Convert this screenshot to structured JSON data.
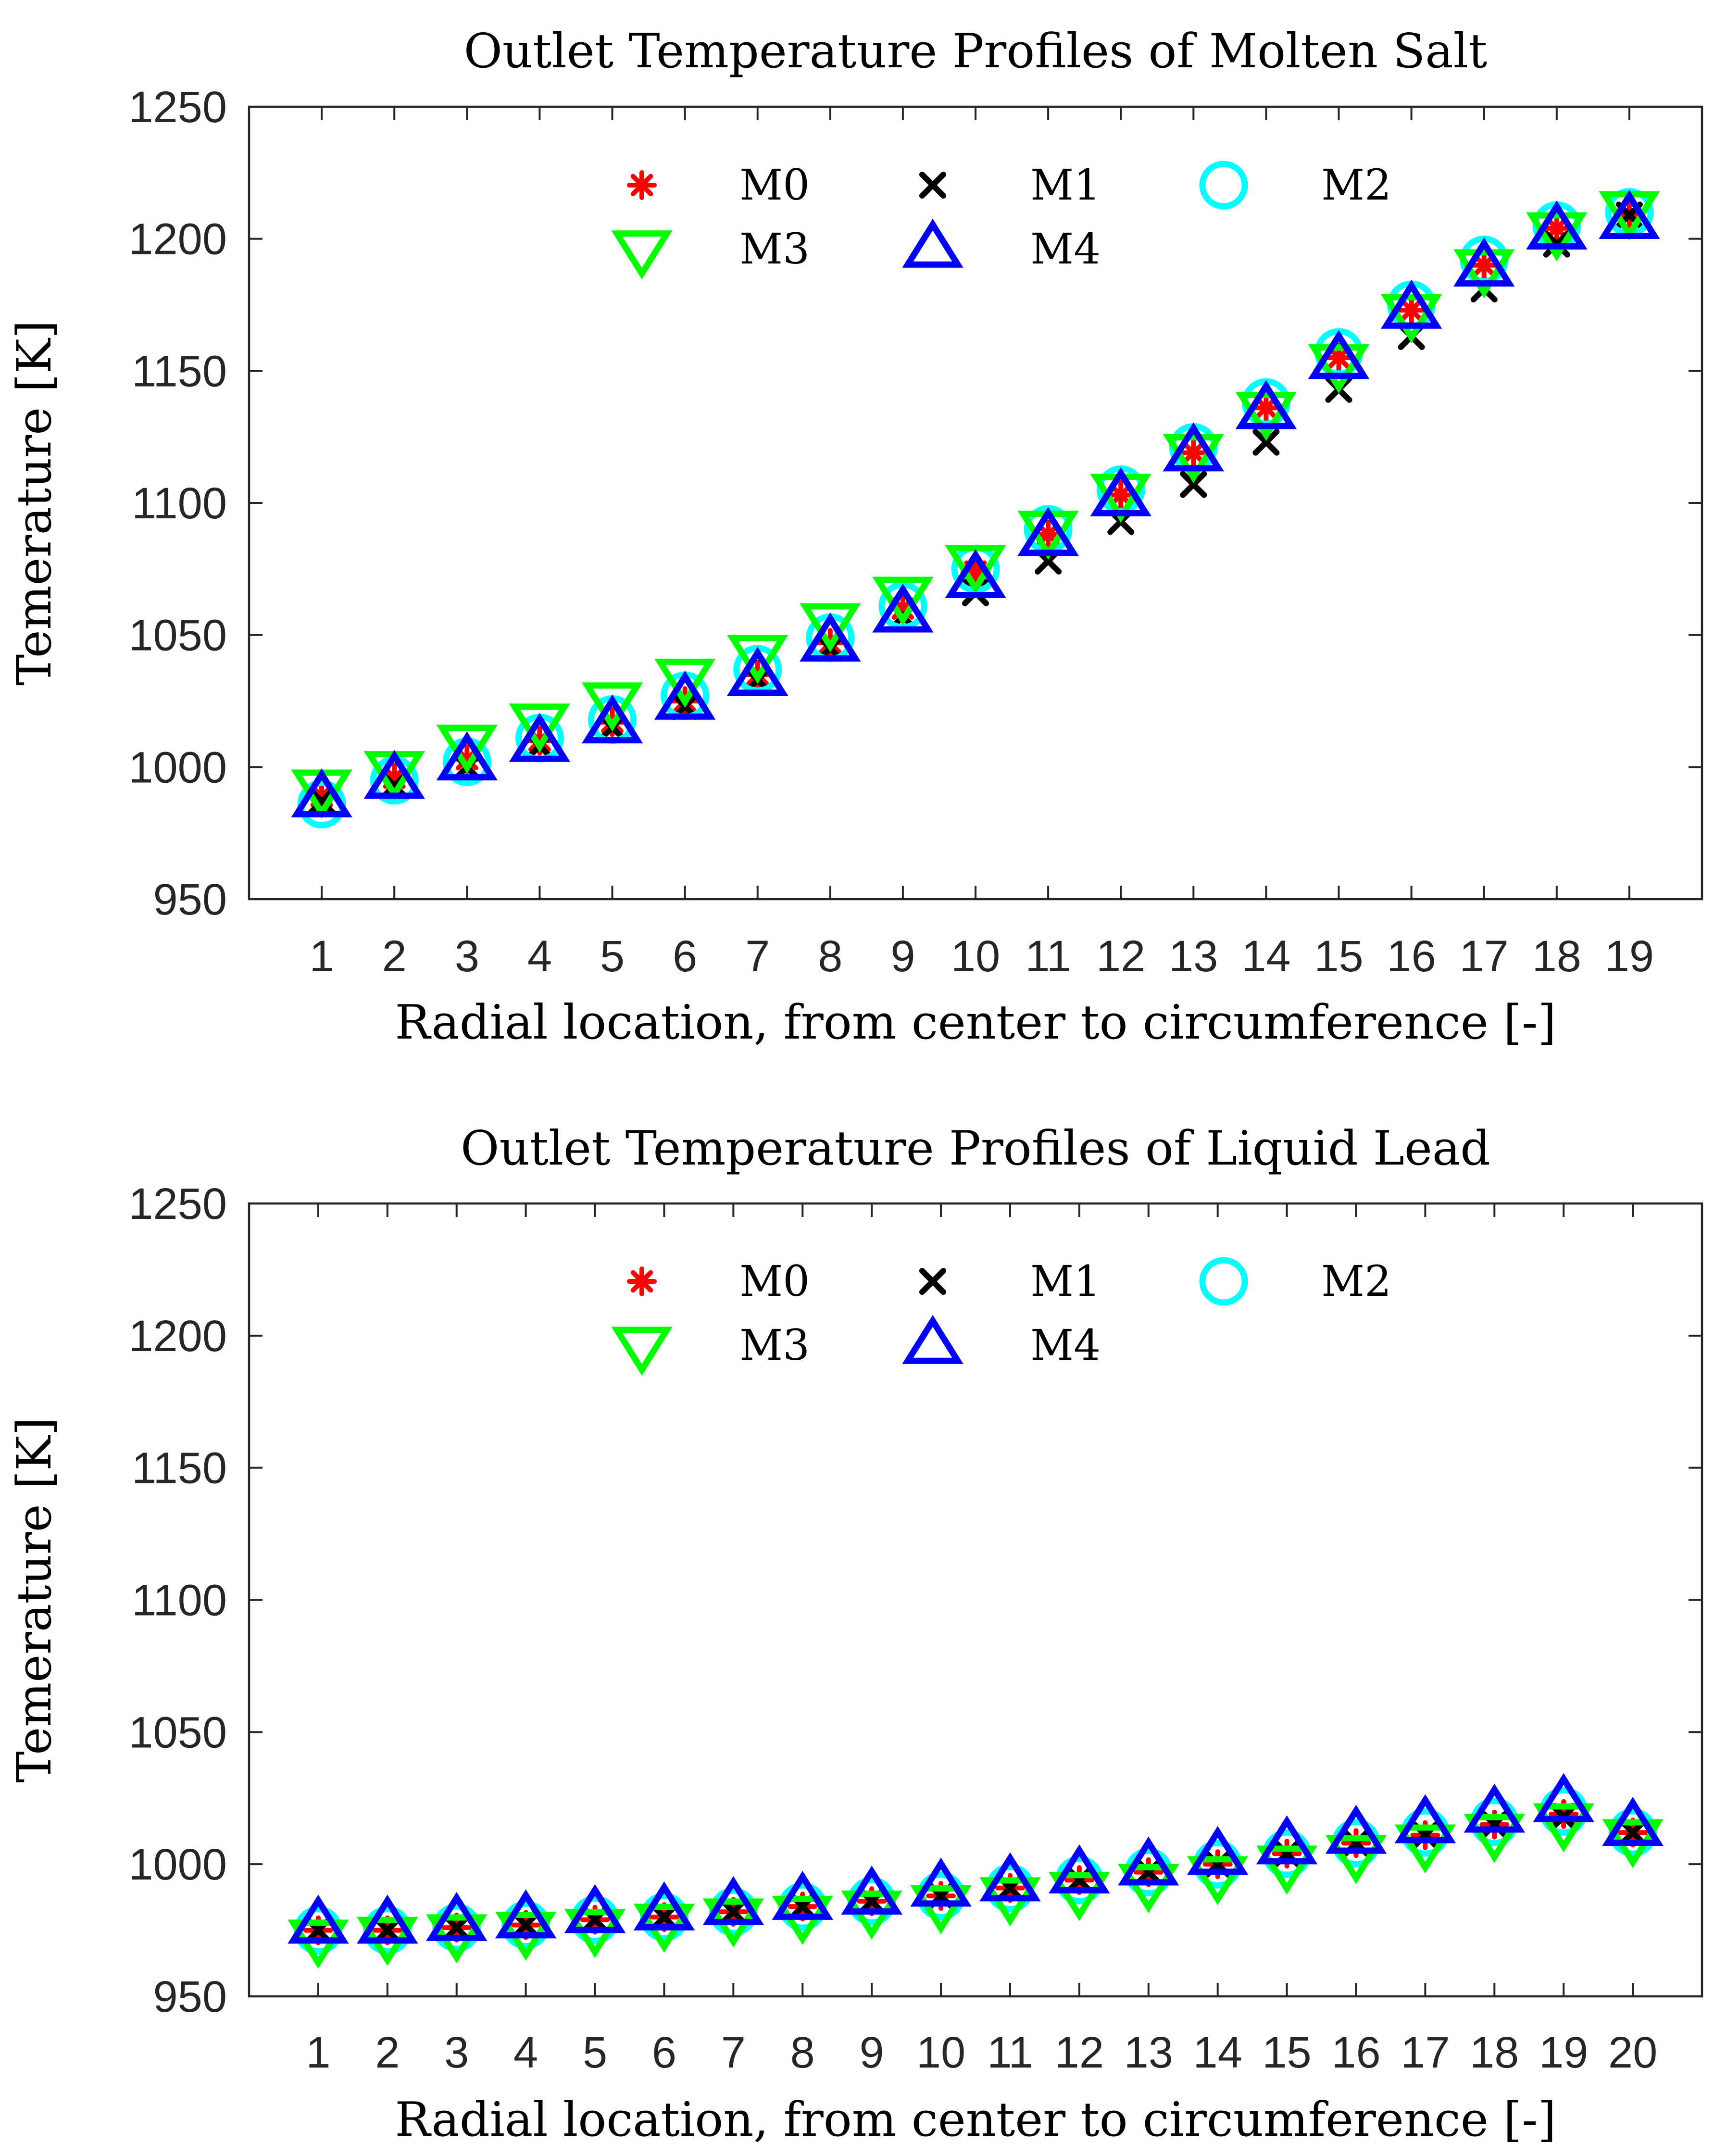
{
  "chart_data": [
    {
      "type": "scatter",
      "title": "Outlet Temperature Profiles of Molten Salt",
      "xlabel": "Radial location, from center to circumference [-]",
      "ylabel": "Temerature [K]",
      "ylim": [
        950,
        1250
      ],
      "yticks": [
        950,
        1000,
        1050,
        1100,
        1150,
        1200,
        1250
      ],
      "categories": [
        "1",
        "2",
        "3",
        "4",
        "5",
        "6",
        "7",
        "8",
        "9",
        "10",
        "11",
        "12",
        "13",
        "14",
        "15",
        "16",
        "17",
        "18",
        "19"
      ],
      "legend_position": "top-center",
      "series": [
        {
          "name": "M0",
          "marker": "asterisk",
          "color": "#ff0000",
          "values": [
            989,
            996,
            1003,
            1010,
            1017,
            1025,
            1035,
            1047,
            1060,
            1074,
            1088,
            1103,
            1119,
            1136,
            1155,
            1173,
            1190,
            1204,
            1209
          ]
        },
        {
          "name": "M1",
          "marker": "x",
          "color": "#000000",
          "values": [
            987,
            993,
            1000,
            1008,
            1015,
            1023,
            1033,
            1045,
            1057,
            1066,
            1078,
            1093,
            1107,
            1123,
            1143,
            1163,
            1181,
            1198,
            1209
          ]
        },
        {
          "name": "M2",
          "marker": "circle",
          "color": "#00ffff",
          "values": [
            986,
            995,
            1002,
            1011,
            1018,
            1027,
            1037,
            1049,
            1061,
            1075,
            1090,
            1105,
            1121,
            1138,
            1157,
            1175,
            1192,
            1205,
            1210
          ]
        },
        {
          "name": "M3",
          "marker": "triangle-down",
          "color": "#00ff00",
          "values": [
            992,
            999,
            1009,
            1017,
            1025,
            1034,
            1043,
            1055,
            1065,
            1077,
            1090,
            1104,
            1119,
            1135,
            1153,
            1172,
            1189,
            1203,
            1211
          ]
        },
        {
          "name": "M4",
          "marker": "triangle-up",
          "color": "#0000ff",
          "values": [
            988,
            995,
            1002,
            1009,
            1016,
            1025,
            1034,
            1047,
            1058,
            1071,
            1087,
            1102,
            1119,
            1135,
            1154,
            1173,
            1189,
            1203,
            1207
          ]
        }
      ]
    },
    {
      "type": "scatter",
      "title": "Outlet Temperature Profiles of Liquid Lead",
      "xlabel": "Radial location, from center to circumference [-]",
      "ylabel": "Temerature [K]",
      "ylim": [
        950,
        1250
      ],
      "yticks": [
        950,
        1000,
        1050,
        1100,
        1150,
        1200,
        1250
      ],
      "categories": [
        "1",
        "2",
        "3",
        "4",
        "5",
        "6",
        "7",
        "8",
        "9",
        "10",
        "11",
        "12",
        "13",
        "14",
        "15",
        "16",
        "17",
        "18",
        "19",
        "20"
      ],
      "legend_position": "top-center",
      "series": [
        {
          "name": "M0",
          "marker": "asterisk",
          "color": "#ff0000",
          "values": [
            975,
            975,
            976,
            977,
            979,
            980,
            982,
            984,
            986,
            988,
            991,
            994,
            997,
            1000,
            1004,
            1008,
            1011,
            1015,
            1019,
            1012
          ]
        },
        {
          "name": "M1",
          "marker": "x",
          "color": "#000000",
          "values": [
            975,
            975,
            976,
            977,
            979,
            980,
            982,
            984,
            986,
            988,
            991,
            994,
            997,
            1000,
            1004,
            1008,
            1011,
            1015,
            1018,
            1012
          ]
        },
        {
          "name": "M2",
          "marker": "circle",
          "color": "#00ffff",
          "values": [
            975,
            975,
            976,
            977,
            979,
            980,
            982,
            984,
            986,
            988,
            991,
            994,
            997,
            1000,
            1004,
            1008,
            1012,
            1016,
            1020,
            1012
          ]
        },
        {
          "name": "M3",
          "marker": "triangle-down",
          "color": "#00ff00",
          "values": [
            972,
            973,
            974,
            975,
            976,
            978,
            980,
            981,
            983,
            985,
            988,
            990,
            993,
            996,
            1000,
            1004,
            1008,
            1012,
            1016,
            1010
          ]
        },
        {
          "name": "M4",
          "marker": "triangle-up",
          "color": "#0000ff",
          "values": [
            977,
            977,
            978,
            979,
            981,
            982,
            984,
            986,
            988,
            991,
            993,
            996,
            999,
            1003,
            1007,
            1011,
            1015,
            1019,
            1023,
            1014
          ]
        }
      ]
    }
  ]
}
